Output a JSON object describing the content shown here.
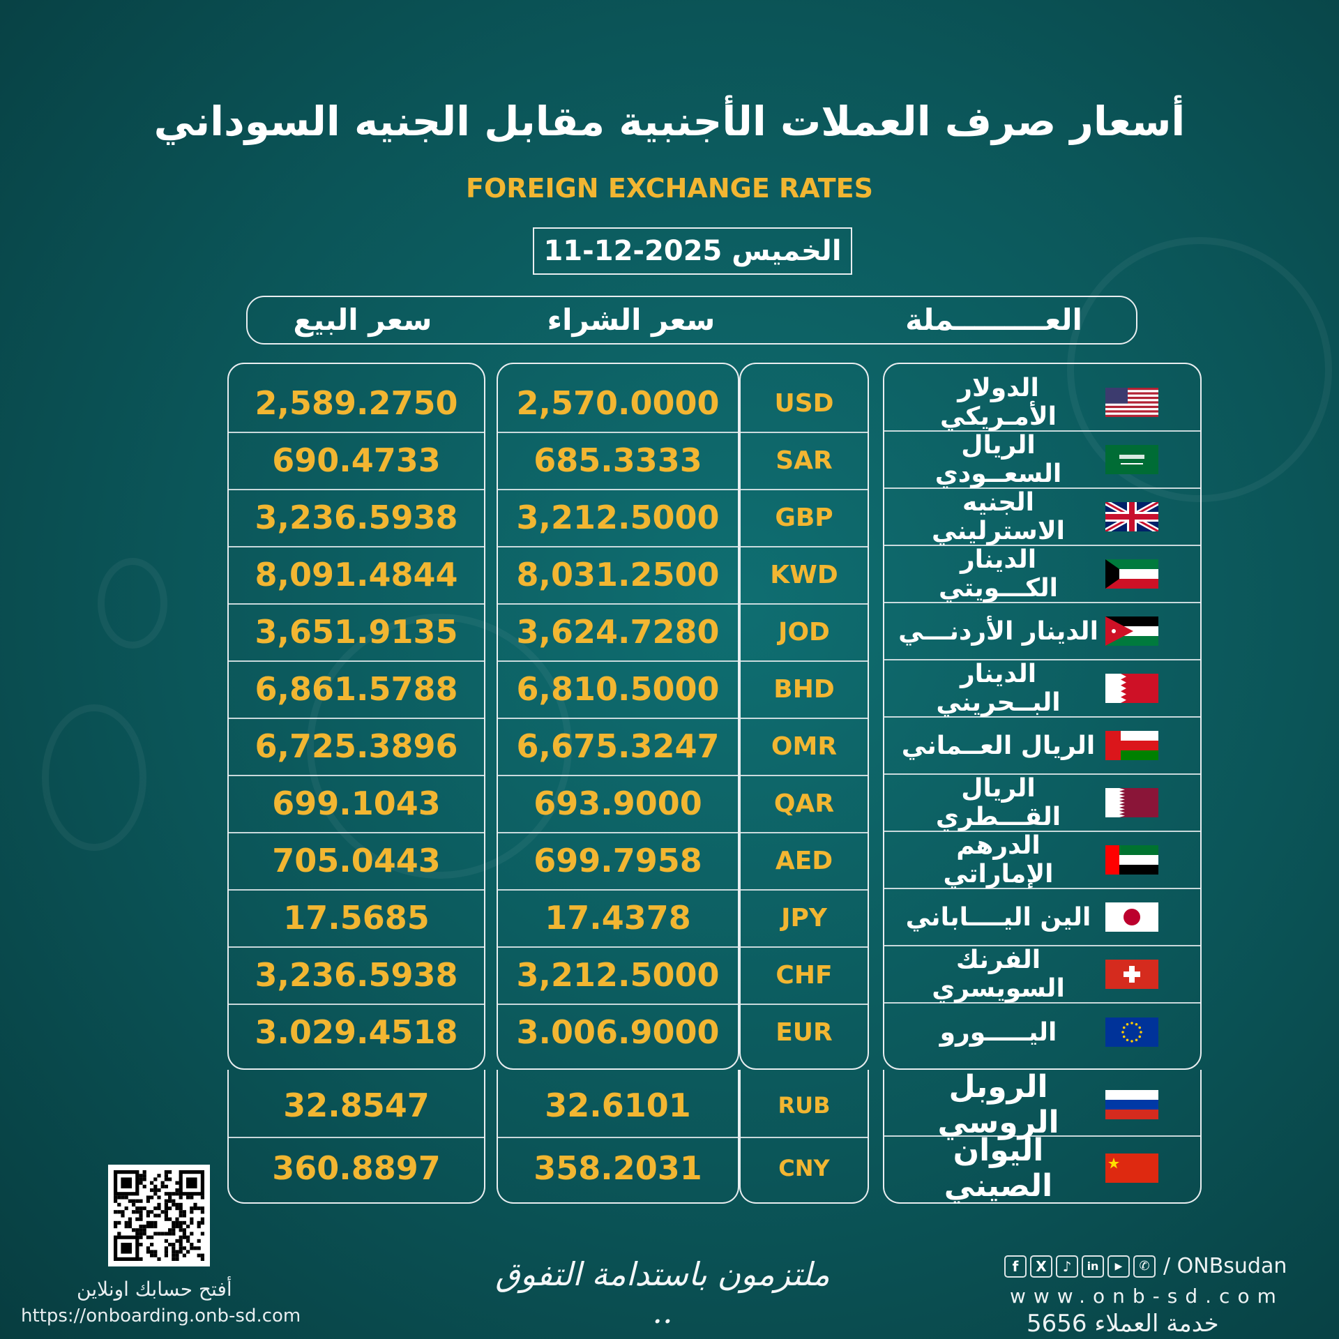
{
  "title": "أسعار صرف العملات الأجنبية مقابل الجنيه السوداني",
  "subtitle": "FOREIGN EXCHANGE RATES",
  "date": "الخميس 2025-12-11",
  "headers": {
    "currency": "العـــــــــملة",
    "buy": "سعر الشراء",
    "sell": "سعر البيع"
  },
  "rows": [
    {
      "name": "الدولار الأمـريكي",
      "code": "USD",
      "buy": "2,570.0000",
      "sell": "2,589.2750",
      "flag": "us-flag"
    },
    {
      "name": "الريال السعــودي",
      "code": "SAR",
      "buy": "685.3333",
      "sell": "690.4733",
      "flag": "sa-flag"
    },
    {
      "name": "الجنيه الاسترليني",
      "code": "GBP",
      "buy": "3,212.5000",
      "sell": "3,236.5938",
      "flag": "gb-flag"
    },
    {
      "name": "الدينار الكـــويتي",
      "code": "KWD",
      "buy": "8,031.2500",
      "sell": "8,091.4844",
      "flag": "kw-flag"
    },
    {
      "name": "الدينار الأردنـــي",
      "code": "JOD",
      "buy": "3,624.7280",
      "sell": "3,651.9135",
      "flag": "jo-flag"
    },
    {
      "name": "الدينار البــحريني",
      "code": "BHD",
      "buy": "6,810.5000",
      "sell": "6,861.5788",
      "flag": "bh-flag"
    },
    {
      "name": "الريال العــماني",
      "code": "OMR",
      "buy": "6,675.3247",
      "sell": "6,725.3896",
      "flag": "om-flag"
    },
    {
      "name": "الريال القـــطري",
      "code": "QAR",
      "buy": "693.9000",
      "sell": "699.1043",
      "flag": "qa-flag"
    },
    {
      "name": "الدرهم الإماراتي",
      "code": "AED",
      "buy": "699.7958",
      "sell": "705.0443",
      "flag": "ae-flag"
    },
    {
      "name": "الين اليــــاباني",
      "code": "JPY",
      "buy": "17.4378",
      "sell": "17.5685",
      "flag": "jp-flag"
    },
    {
      "name": "الفرنك السويسري",
      "code": "CHF",
      "buy": "3,212.5000",
      "sell": "3,236.5938",
      "flag": "ch-flag"
    },
    {
      "name": "اليـــــورو",
      "code": "EUR",
      "buy": "3.006.9000",
      "sell": "3.029.4518",
      "flag": "eu-flag"
    }
  ],
  "extra_rows": [
    {
      "name": "الروبل الروسي",
      "code": "RUB",
      "buy": "32.6101",
      "sell": "32.8547",
      "flag": "ru-flag"
    },
    {
      "name": "اليوان الصيني",
      "code": "CNY",
      "buy": "358.2031",
      "sell": "360.8897",
      "flag": "cn-flag"
    }
  ],
  "footer": {
    "open_account": "أفتح حسابك اونلاين",
    "onboarding_url": "https://onboarding.onb-sd.com",
    "slogan": "ملتزمون باستدامة التفوق ..",
    "social_handle": "/ ONBsudan",
    "website": "www.onb-sd.com",
    "customer_service": "خدمة العملاء 5656",
    "social_icons": [
      "facebook-icon",
      "x-icon",
      "tiktok-icon",
      "linkedin-icon",
      "youtube-icon",
      "whatsapp-icon"
    ]
  }
}
